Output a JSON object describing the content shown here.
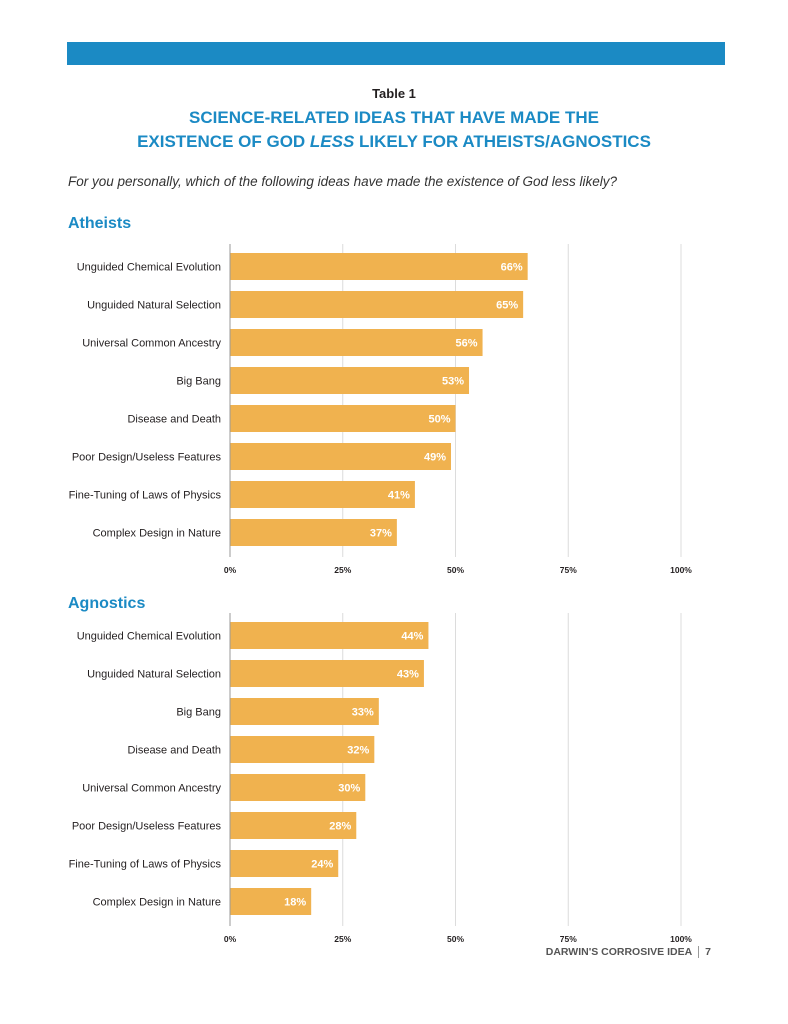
{
  "header": {
    "table_label": "Table 1",
    "title_line1": "SCIENCE-RELATED IDEAS THAT HAVE MADE THE",
    "title_line2_pre": "EXISTENCE OF GOD ",
    "title_line2_em": "LESS",
    "title_line2_post": " LIKELY FOR ATHEISTS/AGNOSTICS",
    "question": "For you personally, which of the following ideas have made the existence of God less likely?"
  },
  "colors": {
    "accent": "#1b8ac4",
    "bar": "#f0b24f",
    "bar_label": "#ffffff",
    "grid": "#dcdcdc"
  },
  "chart_data": [
    {
      "type": "bar",
      "orientation": "horizontal",
      "title": "Atheists",
      "categories": [
        "Unguided Chemical Evolution",
        "Unguided Natural Selection",
        "Universal Common Ancestry",
        "Big Bang",
        "Disease and Death",
        "Poor Design/Useless Features",
        "Fine-Tuning of Laws of Physics",
        "Complex Design in Nature"
      ],
      "values": [
        66,
        65,
        56,
        53,
        50,
        49,
        41,
        37
      ],
      "value_labels": [
        "66%",
        "65%",
        "56%",
        "53%",
        "50%",
        "49%",
        "41%",
        "37%"
      ],
      "xlim": [
        0,
        100
      ],
      "xticks": [
        0,
        25,
        50,
        75,
        100
      ],
      "xtick_labels": [
        "0%",
        "25%",
        "50%",
        "75%",
        "100%"
      ],
      "grid": true
    },
    {
      "type": "bar",
      "orientation": "horizontal",
      "title": "Agnostics",
      "categories": [
        "Unguided Chemical Evolution",
        "Unguided Natural Selection",
        "Big Bang",
        "Disease and Death",
        "Universal Common Ancestry",
        "Poor Design/Useless Features",
        "Fine-Tuning of Laws of Physics",
        "Complex Design in Nature"
      ],
      "values": [
        44,
        43,
        33,
        32,
        30,
        28,
        24,
        18
      ],
      "value_labels": [
        "44%",
        "43%",
        "33%",
        "32%",
        "30%",
        "28%",
        "24%",
        "18%"
      ],
      "xlim": [
        0,
        100
      ],
      "xticks": [
        0,
        25,
        50,
        75,
        100
      ],
      "xtick_labels": [
        "0%",
        "25%",
        "50%",
        "75%",
        "100%"
      ],
      "grid": true
    }
  ],
  "footer": {
    "title": "DARWIN'S CORROSIVE IDEA",
    "page_number": "7"
  }
}
